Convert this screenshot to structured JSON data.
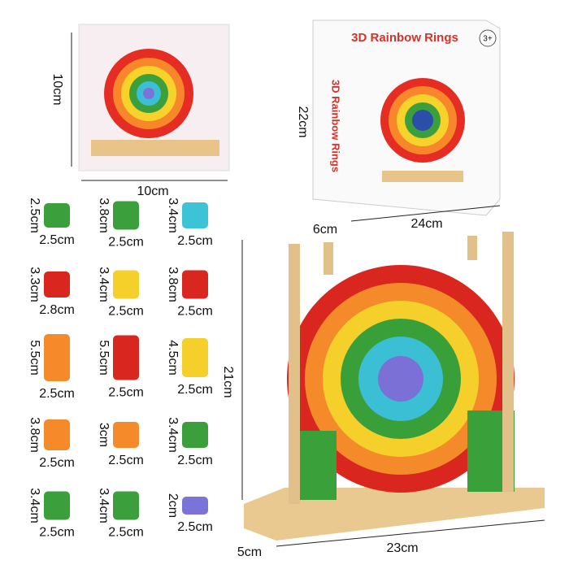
{
  "card": {
    "height": "10cm",
    "width": "10cm"
  },
  "box": {
    "title": "3D Rainbow Rings",
    "age": "3+",
    "side_text": "3D Rainbow Rings",
    "height": "22cm",
    "depth": "6cm",
    "width": "24cm"
  },
  "stand": {
    "height": "21cm",
    "width": "23cm",
    "depth": "5cm"
  },
  "pieces": [
    {
      "height": "2.5cm",
      "width": "2.5cm"
    },
    {
      "height": "3.8cm",
      "width": "2.5cm"
    },
    {
      "height": "3.4cm",
      "width": "2.5cm"
    },
    {
      "height": "3.3cm",
      "width": "2.8cm"
    },
    {
      "height": "3.4cm",
      "width": "2.5cm"
    },
    {
      "height": "3.8cm",
      "width": "2.5cm"
    },
    {
      "height": "5.5cm",
      "width": "2.5cm"
    },
    {
      "height": "5.5cm",
      "width": "2.5cm"
    },
    {
      "height": "4.5cm",
      "width": "2.5cm"
    },
    {
      "height": "3.8cm",
      "width": "2.5cm"
    },
    {
      "height": "3cm",
      "width": "2.5cm"
    },
    {
      "height": "3.4cm",
      "width": "2.5cm"
    },
    {
      "height": "3.4cm",
      "width": "2.5cm"
    },
    {
      "height": "3.4cm",
      "width": "2.5cm"
    },
    {
      "height": "2cm",
      "width": "2.5cm"
    }
  ]
}
